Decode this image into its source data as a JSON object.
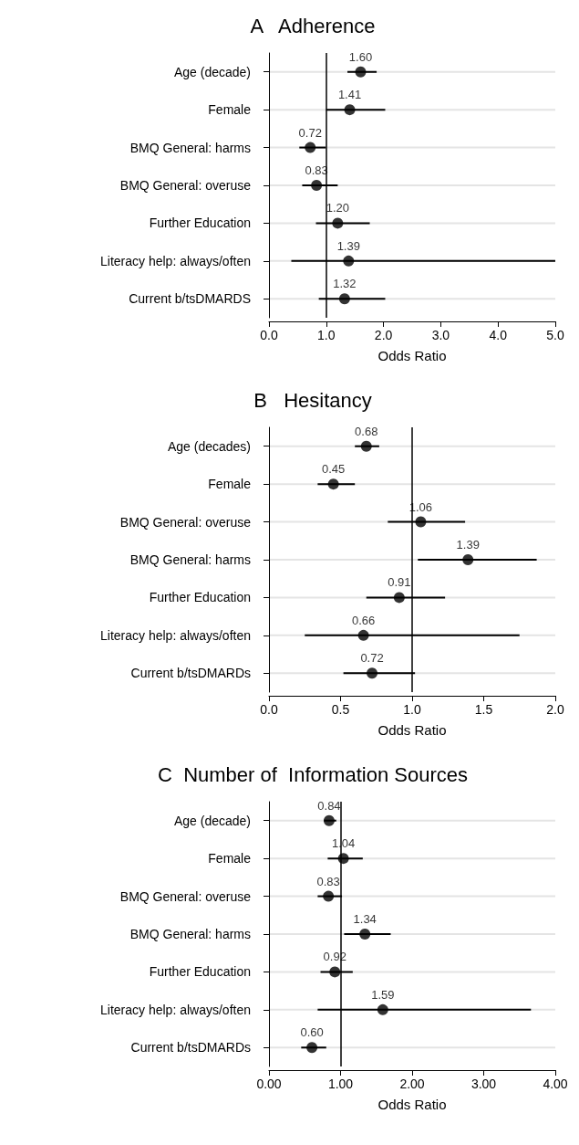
{
  "chart_data": [
    {
      "type": "scatter",
      "title": "A   Adherence",
      "xlabel": "Odds Ratio",
      "orientation": "horizontal",
      "categories": [
        "Age (decade)",
        "Female",
        "BMQ General: harms",
        "BMQ General: overuse",
        "Further Education",
        "Literacy help: always/often",
        "Current b/tsDMARDS"
      ],
      "series": [
        {
          "color": "#000000",
          "values": [
            1.6,
            1.41,
            0.72,
            0.83,
            1.2,
            1.39,
            1.32
          ],
          "value_labels": [
            "1.60",
            "1.41",
            "0.72",
            "0.83",
            "1.20",
            "1.39",
            "1.32"
          ],
          "errors": [
            [
              1.37,
              1.88
            ],
            [
              1.0,
              2.03
            ],
            [
              0.53,
              0.99
            ],
            [
              0.58,
              1.2
            ],
            [
              0.82,
              1.76
            ],
            [
              0.39,
              5.0
            ],
            [
              0.87,
              2.03
            ]
          ]
        }
      ],
      "xlim": [
        0,
        5
      ],
      "xticks": [
        {
          "value": 0,
          "label": "0.0"
        },
        {
          "value": 1,
          "label": "1.0"
        },
        {
          "value": 2,
          "label": "2.0"
        },
        {
          "value": 3,
          "label": "3.0"
        },
        {
          "value": 4,
          "label": "4.0"
        },
        {
          "value": 5,
          "label": "5.0"
        }
      ],
      "ref_lines": [
        {
          "axis": "x",
          "value": 1,
          "color": "#000000"
        }
      ],
      "grid": "y",
      "marker": "circle"
    },
    {
      "type": "scatter",
      "title": "B   Hesitancy",
      "xlabel": "Odds Ratio",
      "orientation": "horizontal",
      "categories": [
        "Age (decades)",
        "Female",
        "BMQ General: overuse",
        "BMQ General: harms",
        "Further Education",
        "Literacy help: always/often",
        "Current b/tsDMARDs"
      ],
      "series": [
        {
          "color": "#000000",
          "values": [
            0.68,
            0.45,
            1.06,
            1.39,
            0.91,
            0.66,
            0.72
          ],
          "value_labels": [
            "0.68",
            "0.45",
            "1.06",
            "1.39",
            "0.91",
            "0.66",
            "0.72"
          ],
          "errors": [
            [
              0.6,
              0.77
            ],
            [
              0.34,
              0.6
            ],
            [
              0.83,
              1.37
            ],
            [
              1.04,
              1.87
            ],
            [
              0.68,
              1.23
            ],
            [
              0.25,
              1.75
            ],
            [
              0.52,
              1.02
            ]
          ]
        }
      ],
      "xlim": [
        0,
        2
      ],
      "xticks": [
        {
          "value": 0,
          "label": "0.0"
        },
        {
          "value": 0.5,
          "label": "0.5"
        },
        {
          "value": 1,
          "label": "1.0"
        },
        {
          "value": 1.5,
          "label": "1.5"
        },
        {
          "value": 2,
          "label": "2.0"
        }
      ],
      "ref_lines": [
        {
          "axis": "x",
          "value": 1,
          "color": "#000000"
        }
      ],
      "grid": "y",
      "marker": "circle"
    },
    {
      "type": "scatter",
      "title": "C  Number of  Information Sources",
      "xlabel": "Odds Ratio",
      "orientation": "horizontal",
      "categories": [
        "Age (decade)",
        "Female",
        "BMQ General: overuse",
        "BMQ General: harms",
        "Further Education",
        "Literacy help: always/often",
        "Current b/tsDMARDs"
      ],
      "series": [
        {
          "color": "#000000",
          "values": [
            0.84,
            1.04,
            0.83,
            1.34,
            0.92,
            1.59,
            0.6
          ],
          "value_labels": [
            "0.84",
            "1.04",
            "0.83",
            "1.34",
            "0.92",
            "1.59",
            "0.60"
          ],
          "errors": [
            [
              0.77,
              0.94
            ],
            [
              0.82,
              1.31
            ],
            [
              0.68,
              1.02
            ],
            [
              1.05,
              1.7
            ],
            [
              0.72,
              1.17
            ],
            [
              0.68,
              3.66
            ],
            [
              0.45,
              0.8
            ]
          ]
        }
      ],
      "xlim": [
        0,
        4
      ],
      "xticks": [
        {
          "value": 0,
          "label": "0.00"
        },
        {
          "value": 1,
          "label": "1.00"
        },
        {
          "value": 2,
          "label": "2.00"
        },
        {
          "value": 3,
          "label": "3.00"
        },
        {
          "value": 4,
          "label": "4.00"
        }
      ],
      "ref_lines": [
        {
          "axis": "x",
          "value": 1,
          "color": "#000000"
        }
      ],
      "grid": "y",
      "marker": "circle"
    }
  ]
}
